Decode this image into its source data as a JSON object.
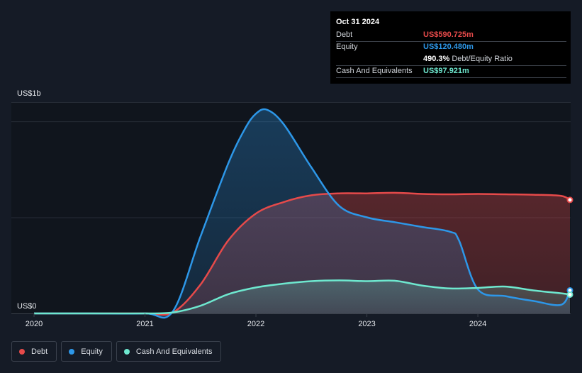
{
  "tooltip": {
    "date": "Oct 31 2024",
    "rows": [
      {
        "label": "Debt",
        "value": "US$590.725m",
        "color": "#e64a4a"
      },
      {
        "label": "Equity",
        "value": "US$120.480m",
        "color": "#2d97e8"
      },
      {
        "label": "",
        "value": "490.3%",
        "suffix": "Debt/Equity Ratio",
        "color": "#ffffff"
      },
      {
        "label": "Cash And Equivalents",
        "value": "US$97.921m",
        "color": "#6ee8cf"
      }
    ]
  },
  "legend": [
    {
      "label": "Debt",
      "color": "#e64a4a"
    },
    {
      "label": "Equity",
      "color": "#2d97e8"
    },
    {
      "label": "Cash And Equivalents",
      "color": "#6ee8cf"
    }
  ],
  "chart_data": {
    "type": "area",
    "y_top_label": "US$1b",
    "y_bottom_label": "US$0",
    "ylim": [
      0,
      1100
    ],
    "xlim": [
      2020.0,
      2024.83
    ],
    "x_ticks": [
      2020,
      2021,
      2022,
      2023,
      2024
    ],
    "x_tick_labels": [
      "2020",
      "2021",
      "2022",
      "2023",
      "2024"
    ],
    "grid": true,
    "legend_position": "bottom-left",
    "series": [
      {
        "name": "Debt",
        "color": "#e64a4a",
        "x": [
          2020.0,
          2020.5,
          2021.0,
          2021.25,
          2021.5,
          2021.75,
          2022.0,
          2022.25,
          2022.5,
          2022.75,
          2023.0,
          2023.25,
          2023.5,
          2023.75,
          2024.0,
          2024.25,
          2024.5,
          2024.75,
          2024.83
        ],
        "values": [
          0,
          0,
          0,
          5,
          150,
          380,
          520,
          580,
          615,
          625,
          625,
          628,
          622,
          620,
          622,
          620,
          618,
          612,
          591
        ]
      },
      {
        "name": "Equity",
        "color": "#2d97e8",
        "x": [
          2020.0,
          2020.5,
          2021.0,
          2021.25,
          2021.5,
          2021.75,
          2021.9,
          2022.0,
          2022.1,
          2022.25,
          2022.5,
          2022.75,
          2023.0,
          2023.25,
          2023.5,
          2023.75,
          2023.83,
          2024.0,
          2024.25,
          2024.5,
          2024.75,
          2024.83
        ],
        "values": [
          0,
          0,
          0,
          10,
          400,
          780,
          960,
          1040,
          1060,
          985,
          760,
          560,
          500,
          475,
          450,
          425,
          380,
          125,
          90,
          65,
          45,
          120
        ]
      },
      {
        "name": "Cash And Equivalents",
        "color": "#6ee8cf",
        "x": [
          2020.0,
          2020.5,
          2021.0,
          2021.25,
          2021.5,
          2021.75,
          2022.0,
          2022.25,
          2022.5,
          2022.75,
          2023.0,
          2023.25,
          2023.5,
          2023.75,
          2024.0,
          2024.25,
          2024.5,
          2024.75,
          2024.83
        ],
        "values": [
          0,
          0,
          0,
          5,
          40,
          100,
          135,
          155,
          168,
          172,
          168,
          170,
          145,
          130,
          133,
          140,
          120,
          105,
          98
        ]
      }
    ]
  }
}
